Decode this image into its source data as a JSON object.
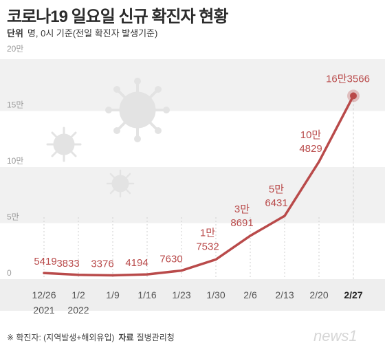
{
  "title": "코로나19 일요일 신규 확진자 현황",
  "unit_label": "단위",
  "unit_text": "명, 0시 기준(전일 확진자 발생기준)",
  "footer_note": "※ 확진자: (지역발생+해외유입)",
  "source_label": "자료",
  "source": "질병관리청",
  "logo_text": "news1",
  "colors": {
    "line": "#b94a4a",
    "accent": "#b94a4a",
    "band": "#f1f1f1",
    "text": "#333333"
  },
  "chart_data": {
    "type": "line",
    "title": "코로나19 일요일 신규 확진자 현황",
    "unit": "명",
    "categories": [
      "12/26",
      "1/2",
      "1/9",
      "1/16",
      "1/23",
      "1/30",
      "2/6",
      "2/13",
      "2/20",
      "2/27"
    ],
    "year_labels": [
      {
        "index": 0,
        "label": "2021"
      },
      {
        "index": 1,
        "label": "2022"
      }
    ],
    "highlight_index": 9,
    "values": [
      5419,
      3833,
      3376,
      4194,
      7630,
      17532,
      38691,
      56431,
      104829,
      163566
    ],
    "data_labels": [
      [
        "5419"
      ],
      [
        "3833"
      ],
      [
        "3376"
      ],
      [
        "4194"
      ],
      [
        "7630"
      ],
      [
        "1만",
        "7532"
      ],
      [
        "3만",
        "8691"
      ],
      [
        "5만",
        "6431"
      ],
      [
        "10만",
        "4829"
      ],
      [
        "16만3566"
      ]
    ],
    "y_ticks": [
      "0",
      "5만",
      "10만",
      "15만",
      "20만"
    ],
    "y_tick_values": [
      0,
      50000,
      100000,
      150000,
      200000
    ],
    "ylim": [
      0,
      200000
    ],
    "grid": true
  }
}
